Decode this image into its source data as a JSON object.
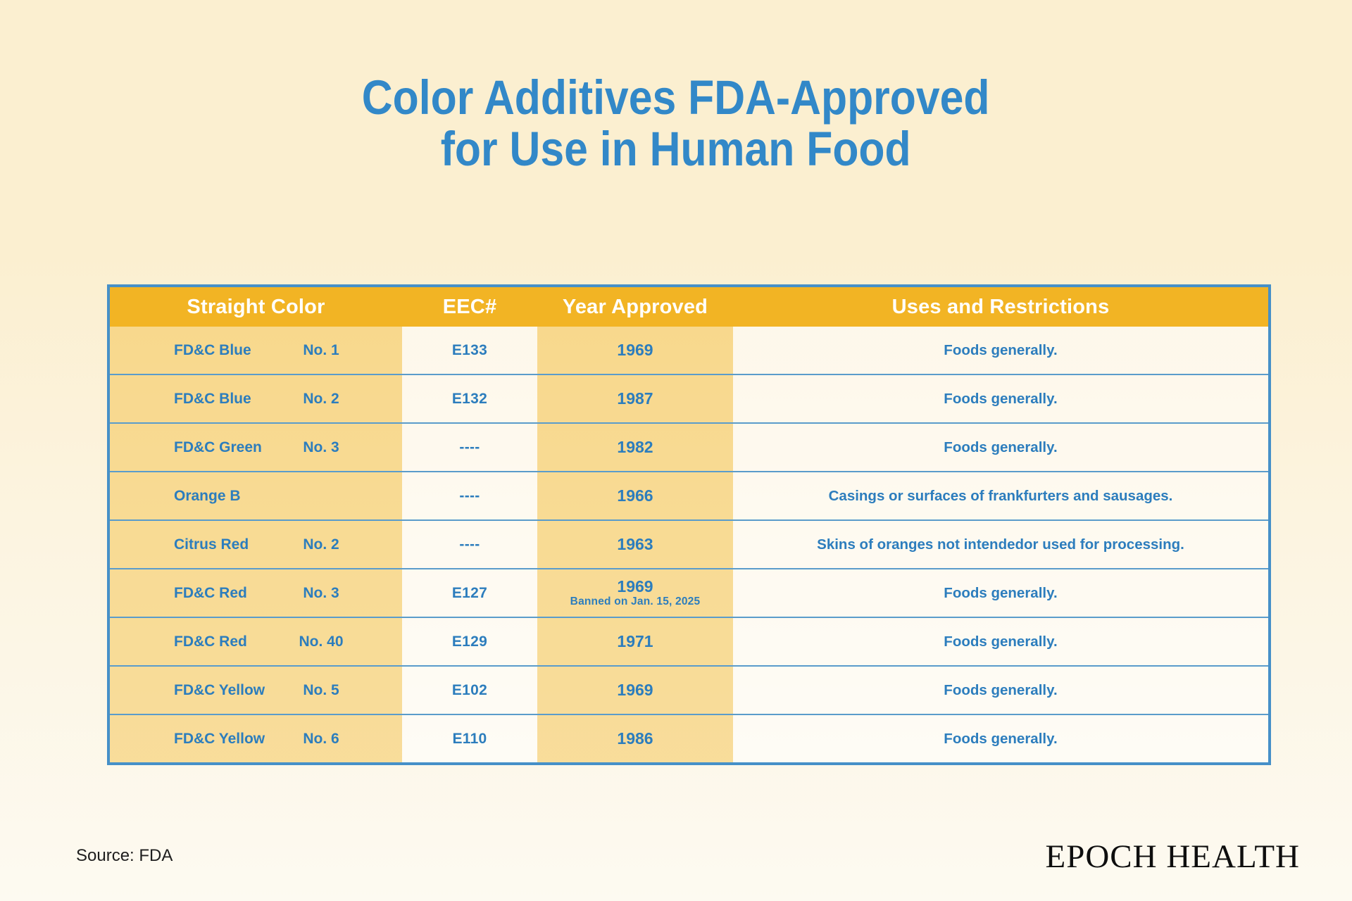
{
  "page": {
    "title_line1": "Color Additives FDA-Approved",
    "title_line2": "for Use in Human Food",
    "source": "Source: FDA",
    "brand": "EPOCH HEALTH"
  },
  "colors": {
    "bg_top": "#FBEFD0",
    "bg_bottom": "#FDFAF1",
    "title_blue": "#3288C8",
    "text_blue": "#2C7DBD",
    "header_bg": "#F2B424",
    "header_text": "#FFFFFF",
    "table_border": "#4690C8",
    "row_divider": "#5A9CCB",
    "col_yellow": "rgba(244,184,44,0.42)",
    "col_cream": "rgba(255,255,255,0.52)"
  },
  "table": {
    "headers": [
      "Straight Color",
      "EEC#",
      "Year Approved",
      "Uses and Restrictions"
    ],
    "rows": [
      {
        "color": "FD&C Blue",
        "no": "No. 1",
        "eec": "E133",
        "year": "1969",
        "banned": "",
        "uses": "Foods generally."
      },
      {
        "color": "FD&C Blue",
        "no": "No. 2",
        "eec": "E132",
        "year": "1987",
        "banned": "",
        "uses": "Foods generally."
      },
      {
        "color": "FD&C Green",
        "no": "No. 3",
        "eec": "----",
        "year": "1982",
        "banned": "",
        "uses": "Foods generally."
      },
      {
        "color": "Orange B",
        "no": "",
        "eec": "----",
        "year": "1966",
        "banned": "",
        "uses": "Casings or surfaces of frankfurters and sausages."
      },
      {
        "color": "Citrus Red",
        "no": "No. 2",
        "eec": "----",
        "year": "1963",
        "banned": "",
        "uses": "Skins of oranges not intendedor used for processing."
      },
      {
        "color": "FD&C Red",
        "no": "No. 3",
        "eec": "E127",
        "year": "1969",
        "banned": "Banned on Jan. 15, 2025",
        "uses": "Foods generally."
      },
      {
        "color": "FD&C Red",
        "no": "No. 40",
        "eec": "E129",
        "year": "1971",
        "banned": "",
        "uses": "Foods generally."
      },
      {
        "color": "FD&C Yellow",
        "no": "No. 5",
        "eec": "E102",
        "year": "1969",
        "banned": "",
        "uses": "Foods generally."
      },
      {
        "color": "FD&C Yellow",
        "no": "No. 6",
        "eec": "E110",
        "year": "1986",
        "banned": "",
        "uses": "Foods generally."
      }
    ]
  }
}
